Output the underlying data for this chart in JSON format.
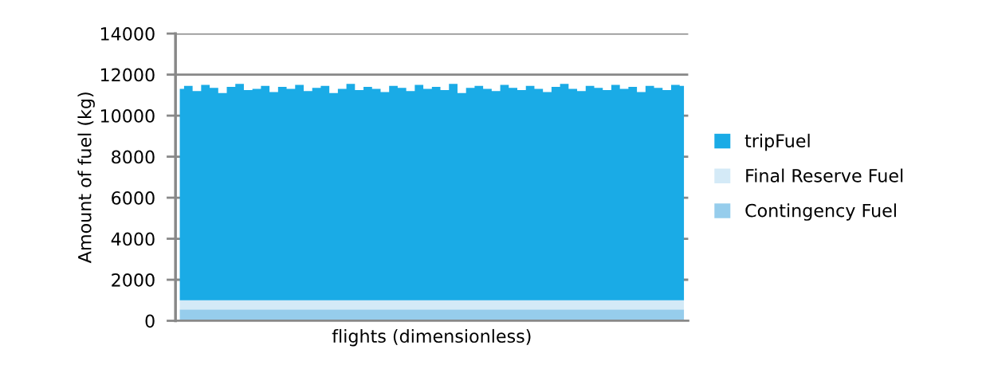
{
  "chart_data": {
    "type": "area",
    "stacked": true,
    "xlabel": "flights (dimensionless)",
    "ylabel": "Amount of fuel (kg)",
    "categories": [
      null,
      null,
      null,
      null,
      null,
      null,
      null,
      null,
      null,
      null,
      null,
      null,
      null,
      null,
      null,
      null,
      null,
      null,
      null,
      null,
      null,
      null,
      null,
      null,
      null,
      null,
      null,
      null,
      null,
      null,
      null,
      null,
      null,
      null,
      null,
      null,
      null,
      null,
      null,
      null,
      null,
      null,
      null,
      null,
      null,
      null,
      null,
      null,
      null,
      null,
      null,
      null,
      null,
      null,
      null,
      null,
      null,
      null,
      null,
      null
    ],
    "ylim": [
      0,
      14000
    ],
    "yticks": [
      0,
      2000,
      4000,
      6000,
      8000,
      10000,
      12000,
      14000
    ],
    "grid": "y",
    "legend": "right",
    "series": [
      {
        "name": "Contingency Fuel",
        "color": "#96cdec",
        "values": [
          550,
          550,
          550,
          550,
          550,
          550,
          550,
          550,
          550,
          550,
          550,
          550,
          550,
          550,
          550,
          550,
          550,
          550,
          550,
          550,
          550,
          550,
          550,
          550,
          550,
          550,
          550,
          550,
          550,
          550,
          550,
          550,
          550,
          550,
          550,
          550,
          550,
          550,
          550,
          550,
          550,
          550,
          550,
          550,
          550,
          550,
          550,
          550,
          550,
          550,
          550,
          550,
          550,
          550,
          550,
          550,
          550,
          550,
          550,
          550
        ]
      },
      {
        "name": "Final Reserve Fuel",
        "color": "#d4eaf7",
        "values": [
          450,
          450,
          450,
          450,
          450,
          450,
          450,
          450,
          450,
          450,
          450,
          450,
          450,
          450,
          450,
          450,
          450,
          450,
          450,
          450,
          450,
          450,
          450,
          450,
          450,
          450,
          450,
          450,
          450,
          450,
          450,
          450,
          450,
          450,
          450,
          450,
          450,
          450,
          450,
          450,
          450,
          450,
          450,
          450,
          450,
          450,
          450,
          450,
          450,
          450,
          450,
          450,
          450,
          450,
          450,
          450,
          450,
          450,
          450,
          450
        ]
      },
      {
        "name": "tripFuel",
        "color": "#1aabe6",
        "values": [
          10300,
          10450,
          10200,
          10500,
          10350,
          10100,
          10400,
          10550,
          10250,
          10300,
          10450,
          10150,
          10400,
          10300,
          10500,
          10200,
          10350,
          10450,
          10100,
          10300,
          10550,
          10250,
          10400,
          10300,
          10150,
          10450,
          10350,
          10200,
          10500,
          10300,
          10400,
          10250,
          10550,
          10100,
          10350,
          10450,
          10300,
          10200,
          10500,
          10350,
          10250,
          10450,
          10300,
          10150,
          10400,
          10550,
          10300,
          10200,
          10450,
          10350,
          10250,
          10500,
          10300,
          10400,
          10150,
          10450,
          10350,
          10250,
          10500,
          10450
        ]
      }
    ]
  }
}
